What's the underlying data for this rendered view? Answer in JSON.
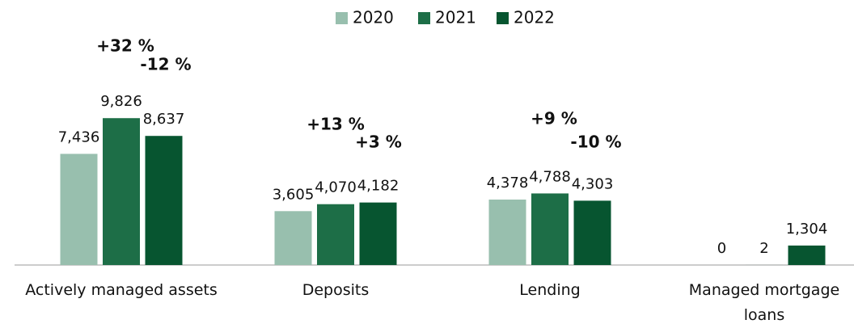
{
  "chart_data": {
    "type": "bar",
    "categories": [
      "Actively managed assets",
      "Deposits",
      "Lending",
      "Managed mortgage loans"
    ],
    "series": [
      {
        "name": "2020",
        "color": "#98bfae",
        "values": [
          7436,
          3605,
          4378,
          0
        ],
        "value_labels": [
          "7,436",
          "3,605",
          "4,378",
          "0"
        ]
      },
      {
        "name": "2021",
        "color": "#1d6e47",
        "values": [
          9826,
          4070,
          4788,
          2
        ],
        "value_labels": [
          "9,826",
          "4,070",
          "4,788",
          "2"
        ]
      },
      {
        "name": "2022",
        "color": "#075530",
        "values": [
          8637,
          4182,
          4303,
          1304
        ],
        "value_labels": [
          "8,637",
          "4,182",
          "4,303",
          "1,304"
        ]
      }
    ],
    "annotations": [
      [
        "+32 %",
        "-12 %"
      ],
      [
        "+13 %",
        "+3 %"
      ],
      [
        "+9 %",
        "-10 %"
      ]
    ],
    "ylim": [
      0,
      10000
    ]
  }
}
